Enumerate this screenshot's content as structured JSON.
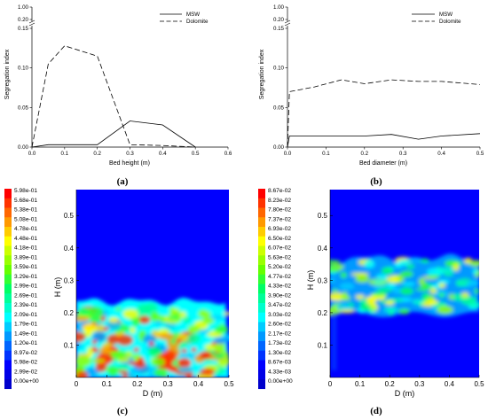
{
  "chart_data": [
    {
      "panel": "(a)",
      "type": "line",
      "xlabel": "Bed height (m)",
      "ylabel": "Segregation index",
      "xlim": [
        0,
        0.6
      ],
      "ylim_lower": [
        0,
        0.15
      ],
      "ylim_upper": [
        0.2,
        1.0
      ],
      "xticks": [
        "0.0",
        "0.1",
        "0.2",
        "0.3",
        "0.4",
        "0.5",
        "0.6"
      ],
      "yticks_lower": [
        "0.00",
        "0.05",
        "0.10",
        "0.15"
      ],
      "yticks_upper": [
        "0.20",
        "1.00"
      ],
      "axis_break": true,
      "legend_position": "top-right",
      "series": [
        {
          "name": "MSW",
          "style": "solid",
          "x": [
            0.0,
            0.05,
            0.1,
            0.2,
            0.3,
            0.4,
            0.5
          ],
          "y": [
            0.0,
            0.003,
            0.003,
            0.003,
            0.033,
            0.028,
            0.0
          ]
        },
        {
          "name": "Dolomite",
          "style": "dashed",
          "x": [
            0.0,
            0.05,
            0.1,
            0.2,
            0.3,
            0.4,
            0.5
          ],
          "y": [
            0.0,
            0.105,
            0.128,
            0.115,
            0.003,
            0.002,
            0.0
          ]
        }
      ]
    },
    {
      "panel": "(b)",
      "type": "line",
      "xlabel": "Bed diameter (m)",
      "ylabel": "Segregation index",
      "xlim": [
        0,
        0.5
      ],
      "ylim_lower": [
        0,
        0.15
      ],
      "ylim_upper": [
        0.2,
        1.0
      ],
      "xticks": [
        "0.0",
        "0.1",
        "0.2",
        "0.3",
        "0.4",
        "0.5"
      ],
      "yticks_lower": [
        "0.00",
        "0.05",
        "0.10",
        "0.15"
      ],
      "yticks_upper": [
        "0.20",
        "1.00"
      ],
      "axis_break": true,
      "legend_position": "top-right",
      "series": [
        {
          "name": "MSW",
          "style": "solid",
          "x": [
            0.0,
            0.005,
            0.07,
            0.14,
            0.2,
            0.27,
            0.34,
            0.4,
            0.5
          ],
          "y": [
            0.0,
            0.014,
            0.014,
            0.014,
            0.014,
            0.016,
            0.01,
            0.014,
            0.017
          ]
        },
        {
          "name": "Dolomite",
          "style": "dashed",
          "x": [
            0.0,
            0.005,
            0.07,
            0.14,
            0.2,
            0.27,
            0.34,
            0.4,
            0.5
          ],
          "y": [
            0.0,
            0.07,
            0.076,
            0.085,
            0.08,
            0.085,
            0.083,
            0.083,
            0.079
          ]
        }
      ]
    },
    {
      "panel": "(c)",
      "type": "heatmap",
      "xlabel": "D (m)",
      "ylabel": "H (m)",
      "xlim": [
        0,
        0.5
      ],
      "ylim": [
        0,
        0.58
      ],
      "bed_top_m": 0.235,
      "xticks": [
        "0",
        "0.1",
        "0.2",
        "0.3",
        "0.4",
        "0.5"
      ],
      "yticks": [
        "0.1",
        "0.2",
        "0.3",
        "0.4",
        "0.5"
      ],
      "colorbar_labels": [
        "5.98e-01",
        "5.68e-01",
        "5.38e-01",
        "5.08e-01",
        "4.78e-01",
        "4.48e-01",
        "4.18e-01",
        "3.89e-01",
        "3.59e-01",
        "3.29e-01",
        "2.99e-01",
        "2.69e-01",
        "2.39e-01",
        "2.09e-01",
        "1.79e-01",
        "1.49e-01",
        "1.20e-01",
        "8.97e-02",
        "5.98e-02",
        "2.99e-02",
        "0.00e+00"
      ]
    },
    {
      "panel": "(d)",
      "type": "heatmap",
      "xlabel": "D (m)",
      "ylabel": "H (m)",
      "xlim": [
        0,
        0.5
      ],
      "ylim": [
        0,
        0.58
      ],
      "band_m": [
        0.2,
        0.38
      ],
      "xticks": [
        "0",
        "0.1",
        "0.2",
        "0.3",
        "0.4",
        "0.5"
      ],
      "yticks": [
        "0.1",
        "0.2",
        "0.3",
        "0.4",
        "0.5"
      ],
      "colorbar_labels": [
        "8.67e-02",
        "8.23e-02",
        "7.80e-02",
        "7.37e-02",
        "6.93e-02",
        "6.50e-02",
        "6.07e-02",
        "5.63e-02",
        "5.20e-02",
        "4.77e-02",
        "4.33e-02",
        "3.90e-02",
        "3.47e-02",
        "3.03e-02",
        "2.60e-02",
        "2.17e-02",
        "1.73e-02",
        "1.30e-02",
        "8.67e-03",
        "4.33e-03",
        "0.00e+00"
      ]
    }
  ],
  "colors": {
    "heatmap_scale": [
      "#ff0000",
      "#ff3300",
      "#ff6600",
      "#ff9900",
      "#ffcc00",
      "#ffff00",
      "#ccff00",
      "#99ff00",
      "#66ff00",
      "#33ff33",
      "#00ff66",
      "#00ff99",
      "#00ffcc",
      "#00ffff",
      "#00ccff",
      "#0099ff",
      "#0066ff",
      "#0033ff",
      "#0000ff",
      "#0000e6",
      "#0000cc"
    ],
    "field_background": "#0000ff"
  }
}
